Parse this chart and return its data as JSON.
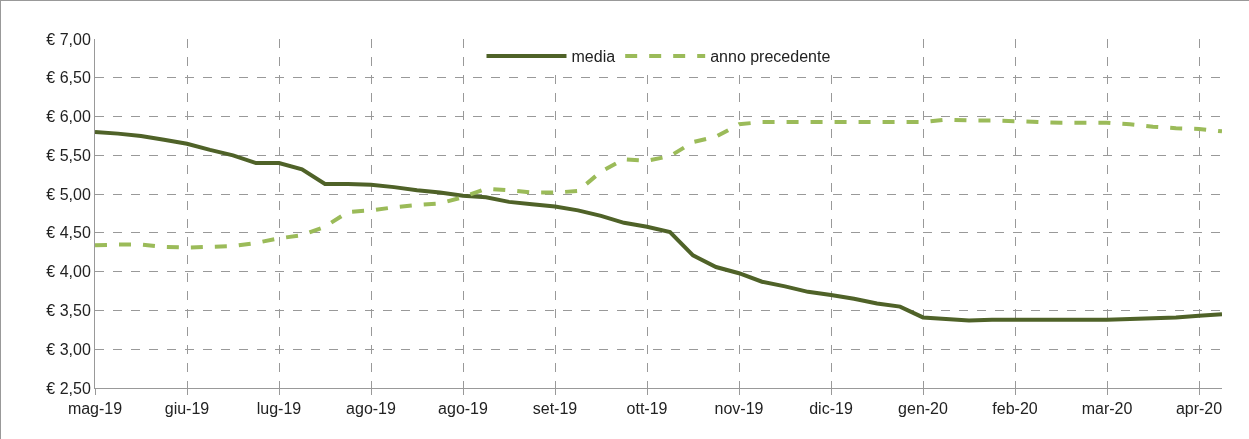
{
  "chart_data": {
    "type": "line",
    "categories": [
      "mag-19",
      null,
      null,
      null,
      "giu-19",
      null,
      null,
      null,
      "lug-19",
      null,
      null,
      null,
      "ago-19",
      null,
      null,
      null,
      "ago-19",
      null,
      null,
      null,
      "set-19",
      null,
      null,
      null,
      "ott-19",
      null,
      null,
      null,
      "nov-19",
      null,
      null,
      null,
      "dic-19",
      null,
      null,
      null,
      "gen-20",
      null,
      null,
      null,
      "feb-20",
      null,
      null,
      null,
      "mar-20",
      null,
      null,
      null,
      "apr-20",
      null
    ],
    "series": [
      {
        "name": "media",
        "color": "#4f6228",
        "line_style": "solid",
        "values": [
          5.8,
          5.78,
          5.75,
          5.7,
          5.65,
          5.57,
          5.5,
          5.4,
          5.4,
          5.32,
          5.13,
          5.13,
          5.12,
          5.09,
          5.05,
          5.02,
          4.98,
          4.96,
          4.9,
          4.87,
          4.84,
          4.79,
          4.72,
          4.63,
          4.58,
          4.51,
          4.21,
          4.06,
          3.98,
          3.87,
          3.81,
          3.74,
          3.7,
          3.65,
          3.59,
          3.55,
          3.41,
          3.39,
          3.37,
          3.38,
          3.38,
          3.38,
          3.38,
          3.38,
          3.38,
          3.39,
          3.4,
          3.41,
          3.43,
          3.45
        ]
      },
      {
        "name": "anno precedente",
        "color": "#9bbb59",
        "line_style": "dashed",
        "values": [
          4.34,
          4.35,
          4.35,
          4.32,
          4.31,
          4.32,
          4.33,
          4.37,
          4.43,
          4.47,
          4.58,
          4.77,
          4.79,
          4.83,
          4.86,
          4.88,
          4.96,
          5.07,
          5.05,
          5.02,
          5.02,
          5.04,
          5.29,
          5.45,
          5.43,
          5.49,
          5.67,
          5.74,
          5.9,
          5.93,
          5.93,
          5.93,
          5.93,
          5.93,
          5.93,
          5.93,
          5.93,
          5.96,
          5.95,
          5.95,
          5.94,
          5.93,
          5.92,
          5.92,
          5.92,
          5.9,
          5.87,
          5.85,
          5.84,
          5.81
        ]
      }
    ],
    "ylim": [
      2.5,
      7.0
    ],
    "yticks": [
      {
        "value": 2.5,
        "label": "€ 2,50"
      },
      {
        "value": 3.0,
        "label": "€ 3,00"
      },
      {
        "value": 3.5,
        "label": "€ 3,50"
      },
      {
        "value": 4.0,
        "label": "€ 4,00"
      },
      {
        "value": 4.5,
        "label": "€ 4,50"
      },
      {
        "value": 5.0,
        "label": "€ 5,00"
      },
      {
        "value": 5.5,
        "label": "€ 5,50"
      },
      {
        "value": 6.0,
        "label": "€ 6,00"
      },
      {
        "value": 6.5,
        "label": "€ 6,50"
      },
      {
        "value": 7.0,
        "label": "€ 7,00"
      }
    ],
    "grid": true,
    "legend": "top",
    "marker": "none"
  }
}
